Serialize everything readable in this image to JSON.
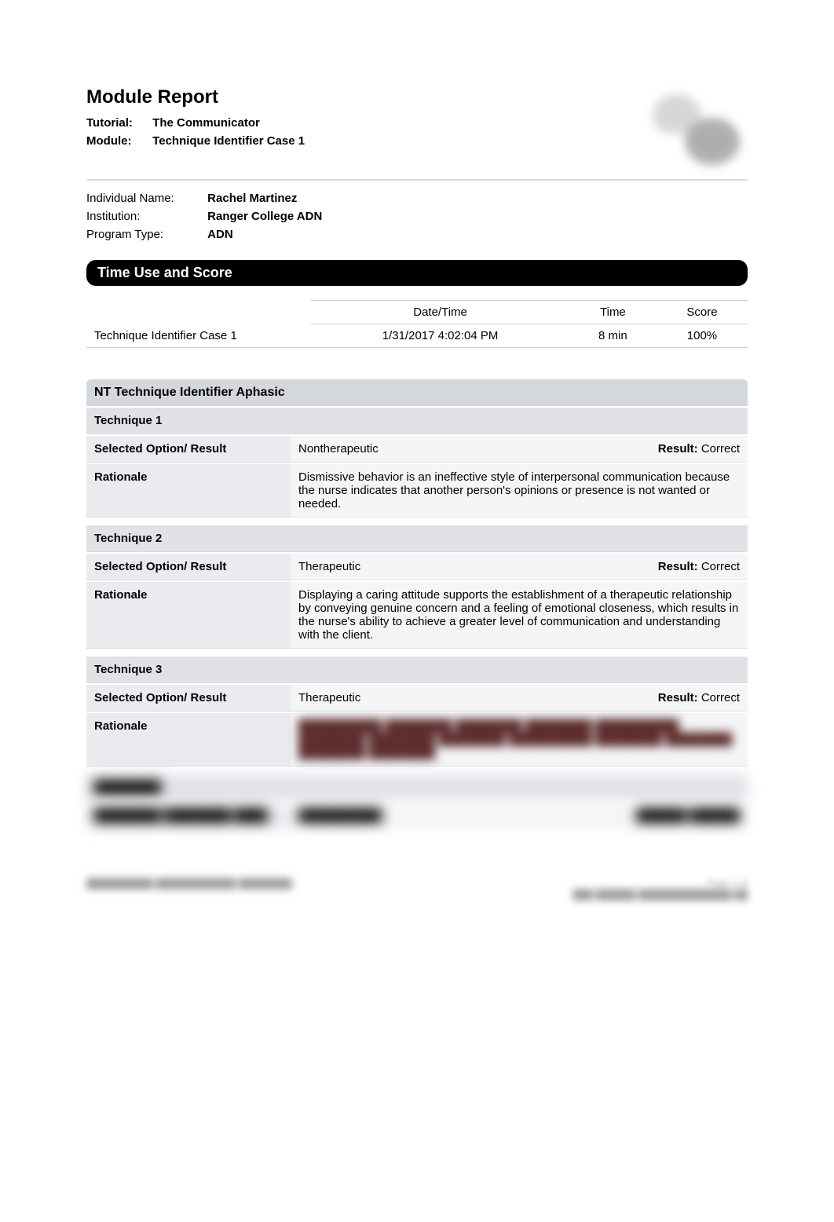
{
  "colors": {
    "page_bg": "#ffffff",
    "text": "#000000",
    "section_bar_bg": "#000000",
    "section_bar_text": "#ffffff",
    "nt_title_bg": "#d4d8dc",
    "nt_label_bg": "#e9ebee",
    "nt_value_bg": "#f4f5f7",
    "nt_tech_header_bg": "#e0e2e6",
    "rule": "#cfcfcf",
    "blur_text": "#5c2c2c"
  },
  "typography": {
    "base_family": "Arial, Helvetica, sans-serif",
    "h1_size_pt": 18,
    "body_size_pt": 11,
    "section_bar_size_pt": 13,
    "nt_title_size_pt": 12
  },
  "header": {
    "title": "Module Report",
    "tutorial_label": "Tutorial:",
    "tutorial_value": "The Communicator",
    "module_label": "Module:",
    "module_value": "Technique Identifier Case 1"
  },
  "info": {
    "name_label": "Individual Name:",
    "name_value": "Rachel Martinez",
    "institution_label": "Institution:",
    "institution_value": "Ranger College ADN",
    "program_label": "Program Type:",
    "program_value": "ADN"
  },
  "time_score": {
    "section_title": "Time Use and Score",
    "columns": {
      "datetime": "Date/Time",
      "time": "Time",
      "score": "Score"
    },
    "row": {
      "module": "Technique Identifier Case 1",
      "datetime": "1/31/2017 4:02:04 PM",
      "time": "8 min",
      "score": "100%"
    }
  },
  "nt": {
    "title": "NT Technique Identifier Aphasic",
    "labels": {
      "selected": "Selected Option/ Result",
      "rationale": "Rationale",
      "result_label": "Result:"
    },
    "techniques": [
      {
        "heading": "Technique 1",
        "selected": "Nontherapeutic",
        "result": "Correct",
        "rationale": "Dismissive behavior is an ineffective style of interpersonal communication because the nurse indicates that another person's opinions or presence is not wanted or needed."
      },
      {
        "heading": "Technique 2",
        "selected": "Therapeutic",
        "result": "Correct",
        "rationale": "Displaying a caring attitude supports the establishment of a therapeutic relationship by conveying genuine concern and a feeling of emotional closeness, which results in the nurse's ability to achieve a greater level of communication and understanding with the client."
      },
      {
        "heading": "Technique 3",
        "selected": "Therapeutic",
        "result": "Correct",
        "rationale_blurred": "██████████ ████████ ████████ ████████ ██████████ ████████ ████████ ████████ ██████████ ████████ ████████ ████████ ████████"
      }
    ],
    "blurred_next": {
      "heading": "████████",
      "label": "████████ ████████ ████",
      "selected": "██████████",
      "result_label": "██████",
      "result": "██████"
    }
  },
  "footer": {
    "page": "Page 1 of",
    "left": "██████████ ████████████ ████████",
    "right": "███ ██████ ██████████████ ██"
  }
}
